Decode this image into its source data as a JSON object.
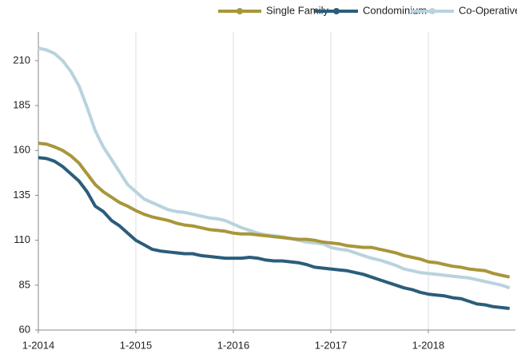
{
  "chart_data": {
    "type": "line",
    "categories": [
      "1-2014",
      null,
      null,
      null,
      null,
      null,
      null,
      null,
      null,
      null,
      null,
      null,
      "1-2015",
      null,
      null,
      null,
      null,
      null,
      null,
      null,
      null,
      null,
      null,
      null,
      "1-2016",
      null,
      null,
      null,
      null,
      null,
      null,
      null,
      null,
      null,
      null,
      null,
      "1-2017",
      null,
      null,
      null,
      null,
      null,
      null,
      null,
      null,
      null,
      null,
      null,
      "1-2018",
      null,
      null,
      null,
      null,
      null,
      null,
      null,
      null,
      null,
      null
    ],
    "series": [
      {
        "name": "Single Family",
        "color": "#a8963a",
        "values": [
          164,
          163.5,
          162,
          160,
          157,
          153,
          147,
          141,
          137,
          134,
          131,
          129,
          126.5,
          124.5,
          123,
          122,
          121,
          119.5,
          118.5,
          118,
          117,
          116,
          115.5,
          115,
          114,
          113.5,
          113.5,
          113,
          112.5,
          112,
          111.5,
          111,
          110.5,
          110.5,
          110,
          109,
          108.5,
          108,
          107,
          106.5,
          106,
          106,
          105,
          104,
          103,
          101.5,
          100.5,
          99.5,
          98,
          97.5,
          96.5,
          95.5,
          95,
          94,
          93.5,
          93,
          91.5,
          90.5,
          89.5
        ]
      },
      {
        "name": "Condominium",
        "color": "#2b5d7b",
        "values": [
          156,
          155.5,
          154,
          151,
          147,
          143,
          137,
          129,
          126,
          121,
          118,
          114,
          110,
          107.5,
          105,
          104,
          103.5,
          103,
          102.5,
          102.5,
          101.5,
          101,
          100.5,
          100,
          100,
          100,
          100.5,
          100,
          99,
          98.5,
          98.5,
          98,
          97.5,
          96.5,
          95,
          94.5,
          94,
          93.5,
          93,
          92,
          91,
          89.5,
          88,
          86.5,
          85,
          83.5,
          82.5,
          81,
          80,
          79.5,
          79,
          78,
          77.5,
          76,
          74.5,
          74,
          73,
          72.5,
          72
        ]
      },
      {
        "name": "Co-Operative",
        "color": "#b9d3de",
        "values": [
          217,
          216,
          214,
          210,
          204,
          196,
          184,
          171,
          162,
          155,
          148,
          141,
          137,
          133,
          131,
          129,
          127,
          126,
          125.5,
          124.5,
          123.5,
          122.5,
          122,
          121,
          119,
          117,
          115.5,
          114,
          113,
          112.5,
          112,
          111,
          110,
          109,
          108.5,
          108,
          106,
          105,
          104.5,
          103,
          101.5,
          100,
          99,
          97.5,
          96,
          94,
          93,
          92,
          91.5,
          91,
          90.5,
          90,
          89.5,
          89,
          88,
          87,
          86,
          85,
          83.5
        ]
      }
    ],
    "ylim": [
      60,
      226
    ],
    "yticks": [
      60,
      85,
      110,
      135,
      160,
      185,
      210
    ],
    "grid": "x"
  }
}
